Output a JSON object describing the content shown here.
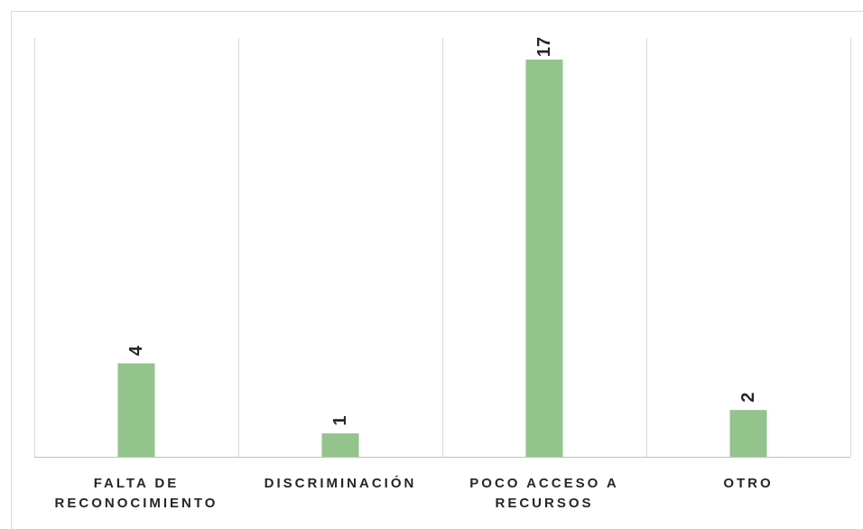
{
  "chart_data": {
    "type": "bar",
    "categories": [
      [
        "FALTA DE",
        "RECONOCIMIENTO"
      ],
      [
        "DISCRIMINACIÓN"
      ],
      [
        "POCO ACCESO A",
        "RECURSOS"
      ],
      [
        "OTRO"
      ]
    ],
    "values": [
      4,
      1,
      17,
      2
    ],
    "data_labels": [
      "4",
      "1",
      "17",
      "2"
    ],
    "ylim": [
      0,
      17
    ],
    "grid": "vertical category separators",
    "legend": "none",
    "colors": {
      "bar": "#93c48b",
      "gridline": "#d9d9d9",
      "axis": "#bfbfbf",
      "text": "#262626"
    }
  }
}
